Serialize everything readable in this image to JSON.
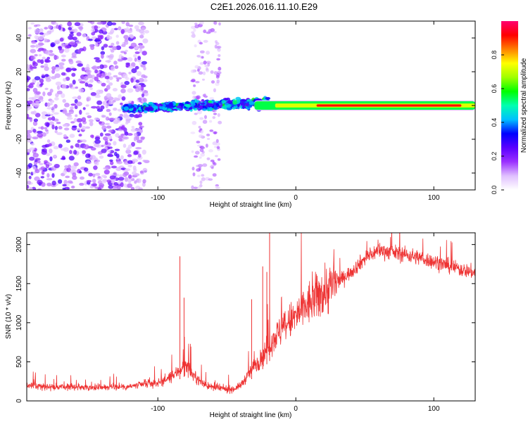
{
  "figure_title": "C2E1.2026.016.11.10.E29",
  "chart_data": [
    {
      "type": "heatmap",
      "title": "C2E1.2026.016.11.10.E29",
      "xlabel": "Height of straight line (km)",
      "ylabel": "Frequency (Hz)",
      "xlim": [
        -195,
        130
      ],
      "ylim": [
        -50,
        50
      ],
      "xticks": [
        -100,
        0,
        100
      ],
      "xtick_labels": [
        "-100",
        "0",
        "100"
      ],
      "yticks": [
        -40,
        -20,
        0,
        20,
        40
      ],
      "ytick_labels": [
        "-40",
        "-20",
        "0",
        "20",
        "40"
      ],
      "colorbar": {
        "label": "Normalized spectral amplitude",
        "range": [
          0,
          1
        ],
        "ticks": [
          0.0,
          0.2,
          0.4,
          0.6,
          0.8
        ],
        "tick_labels": [
          "0.0",
          "0.2",
          "0.4",
          "0.6",
          "0.8"
        ],
        "colors": [
          "#ffffff",
          "#e0c0ff",
          "#9b30ff",
          "#5a00ff",
          "#0000ff",
          "#00c0ff",
          "#00ffb0",
          "#00ff00",
          "#a0ff00",
          "#ffff00",
          "#ff8000",
          "#ff0000",
          "#ff0070"
        ]
      },
      "regions": [
        {
          "name": "scattered noise",
          "x_range": [
            -195,
            -108
          ],
          "freq_range": [
            -50,
            50
          ],
          "amplitude": 0.2
        },
        {
          "name": "secondary scatter",
          "x_range": [
            -75,
            -55
          ],
          "freq_range": [
            -50,
            50
          ],
          "amplitude": 0.15
        },
        {
          "name": "widening band",
          "x_range": [
            -125,
            -20
          ],
          "freq_range": [
            -8,
            10
          ],
          "amplitude": 0.35
        },
        {
          "name": "central line",
          "x_range": [
            -35,
            130
          ],
          "freq_center": 0,
          "bandwidth": 6,
          "amplitude": 0.55
        },
        {
          "name": "peak line",
          "x_range": [
            15,
            120
          ],
          "freq_center": 0,
          "bandwidth": 2,
          "amplitude": 0.95
        }
      ]
    },
    {
      "type": "line",
      "xlabel": "Height of straight line (km)",
      "ylabel": "SNR (10 * v/v)",
      "xlim": [
        -195,
        130
      ],
      "ylim": [
        0,
        2150
      ],
      "xticks": [
        -100,
        0,
        100
      ],
      "xtick_labels": [
        "-100",
        "0",
        "100"
      ],
      "yticks": [
        0,
        500,
        1000,
        1500,
        2000
      ],
      "ytick_labels": [
        "0",
        "500",
        "1000",
        "1500",
        "2000"
      ],
      "series": [
        {
          "name": "SNR",
          "color": "#ee3333",
          "x": [
            -195,
            -180,
            -160,
            -140,
            -120,
            -100,
            -90,
            -85,
            -82,
            -80,
            -78,
            -75,
            -70,
            -65,
            -60,
            -55,
            -50,
            -45,
            -40,
            -35,
            -30,
            -25,
            -20,
            -18,
            -16,
            -12,
            -5,
            0,
            10,
            20,
            30,
            40,
            50,
            60,
            70,
            80,
            90,
            100,
            110,
            120,
            130
          ],
          "values": [
            200,
            180,
            175,
            175,
            185,
            230,
            300,
            380,
            430,
            450,
            420,
            340,
            260,
            200,
            170,
            160,
            150,
            150,
            200,
            320,
            450,
            550,
            700,
            760,
            800,
            880,
            1000,
            1080,
            1250,
            1400,
            1520,
            1650,
            1820,
            1930,
            1900,
            1870,
            1830,
            1780,
            1730,
            1680,
            1640
          ]
        }
      ],
      "spikes": [
        {
          "x": -84,
          "value": 1850
        },
        {
          "x": -81,
          "value": 1320
        },
        {
          "x": -19,
          "value": 2150
        },
        {
          "x": -24,
          "value": 1720
        },
        {
          "x": -21,
          "value": 1650
        },
        {
          "x": -32,
          "value": 1300
        }
      ]
    }
  ]
}
